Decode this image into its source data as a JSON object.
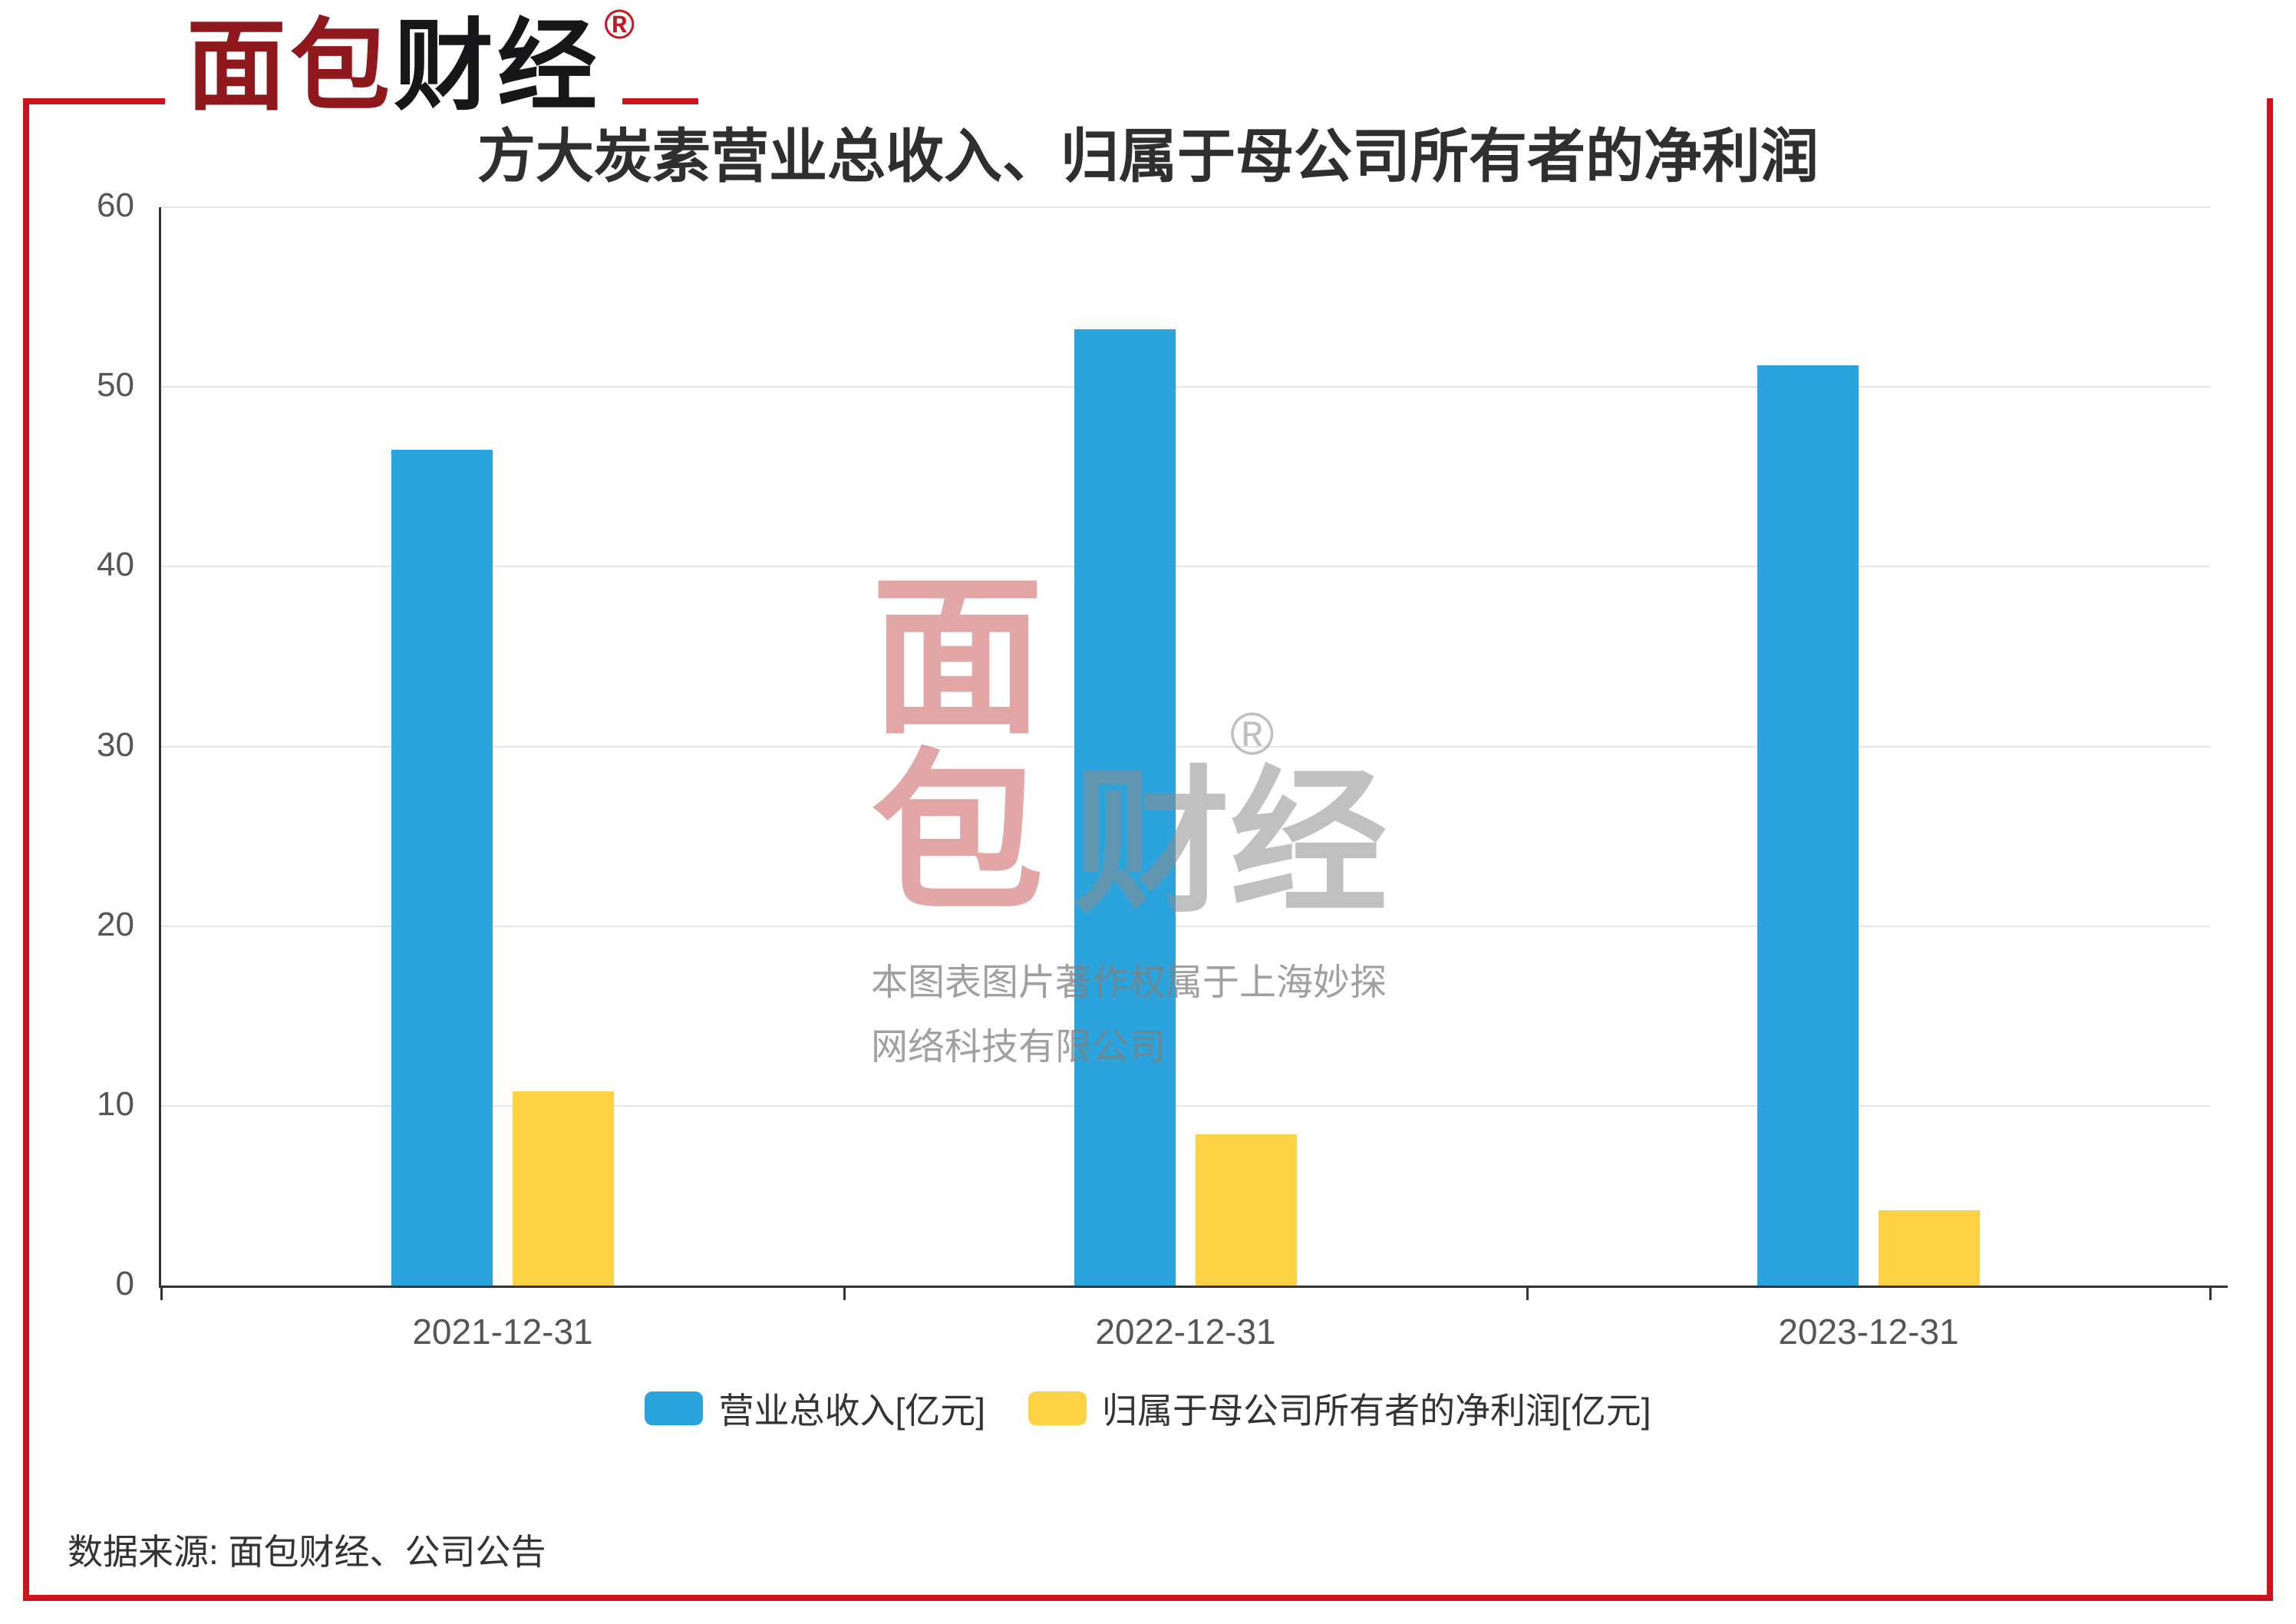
{
  "logo": {
    "part1": "面包",
    "part2": "财经",
    "registered": "®"
  },
  "source": "数据来源: 面包财经、公司公告",
  "watermark": {
    "char1": "面",
    "char2": "包",
    "brand2": "财经",
    "registered": "®",
    "line1": "本图表图片著作权属于上海妙探",
    "line2": "网络科技有限公司"
  },
  "colors": {
    "frame": "#c9161d",
    "axis": "#333333",
    "grid": "#e4e4ea",
    "revenue_bar": "#2ba3dc",
    "profit_bar": "#fcd144"
  },
  "chart_data": {
    "type": "bar",
    "title": "方大炭素营业总收入、归属于母公司所有者的净利润",
    "categories": [
      "2021-12-31",
      "2022-12-31",
      "2023-12-31"
    ],
    "series": [
      {
        "name": "营业总收入[亿元]",
        "color": "#2ba3dc",
        "values": [
          46.5,
          53.2,
          51.2
        ]
      },
      {
        "name": "归属于母公司所有者的净利润[亿元]",
        "color": "#fcd144",
        "values": [
          10.8,
          8.4,
          4.2
        ]
      }
    ],
    "xlabel": "",
    "ylabel": "",
    "ylim": [
      0,
      60
    ],
    "yticks": [
      0,
      10,
      20,
      30,
      40,
      50,
      60
    ],
    "grid": true,
    "legend_position": "bottom"
  }
}
